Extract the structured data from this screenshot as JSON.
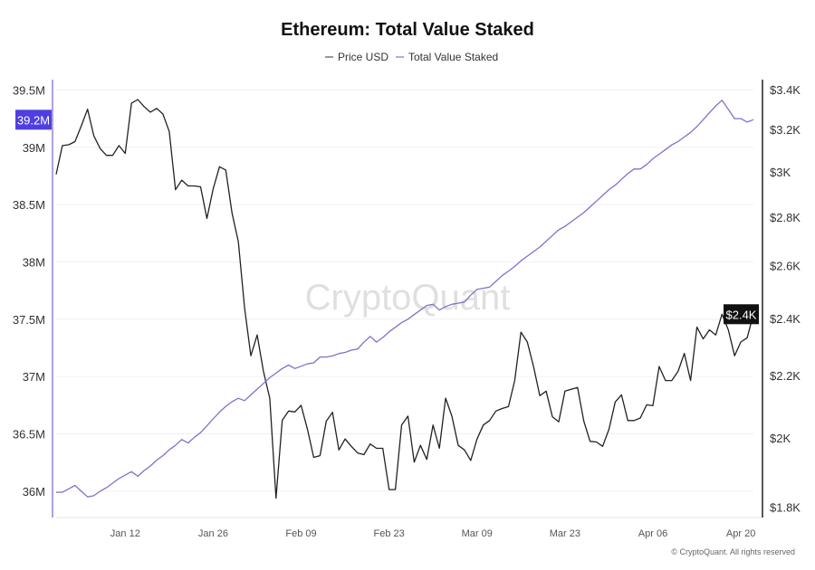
{
  "chart_data": {
    "type": "line",
    "title": "Ethereum: Total Value Staked",
    "legend_placement": "top-center",
    "grid": true,
    "watermark": "CryptoQuant",
    "footer": "© CryptoQuant. All rights reserved",
    "x": [
      "Jan 01",
      "Jan 02",
      "Jan 03",
      "Jan 04",
      "Jan 05",
      "Jan 06",
      "Jan 07",
      "Jan 08",
      "Jan 09",
      "Jan 10",
      "Jan 11",
      "Jan 12",
      "Jan 13",
      "Jan 14",
      "Jan 15",
      "Jan 16",
      "Jan 17",
      "Jan 18",
      "Jan 19",
      "Jan 20",
      "Jan 21",
      "Jan 22",
      "Jan 23",
      "Jan 24",
      "Jan 25",
      "Jan 26",
      "Jan 27",
      "Jan 28",
      "Jan 29",
      "Jan 30",
      "Jan 31",
      "Feb 01",
      "Feb 02",
      "Feb 03",
      "Feb 04",
      "Feb 05",
      "Feb 06",
      "Feb 07",
      "Feb 08",
      "Feb 09",
      "Feb 10",
      "Feb 11",
      "Feb 12",
      "Feb 13",
      "Feb 14",
      "Feb 15",
      "Feb 16",
      "Feb 17",
      "Feb 18",
      "Feb 19",
      "Feb 20",
      "Feb 21",
      "Feb 22",
      "Feb 23",
      "Feb 24",
      "Feb 25",
      "Feb 26",
      "Feb 27",
      "Feb 28",
      "Mar 01",
      "Mar 02",
      "Mar 03",
      "Mar 04",
      "Mar 05",
      "Mar 06",
      "Mar 07",
      "Mar 08",
      "Mar 09",
      "Mar 10",
      "Mar 11",
      "Mar 12",
      "Mar 13",
      "Mar 14",
      "Mar 15",
      "Mar 16",
      "Mar 17",
      "Mar 18",
      "Mar 19",
      "Mar 20",
      "Mar 21",
      "Mar 22",
      "Mar 23",
      "Mar 24",
      "Mar 25",
      "Mar 26",
      "Mar 27",
      "Mar 28",
      "Mar 29",
      "Mar 30",
      "Mar 31",
      "Apr 01",
      "Apr 02",
      "Apr 03",
      "Apr 04",
      "Apr 05",
      "Apr 06",
      "Apr 07",
      "Apr 08",
      "Apr 09",
      "Apr 10",
      "Apr 11",
      "Apr 12",
      "Apr 13",
      "Apr 14",
      "Apr 15",
      "Apr 16",
      "Apr 17",
      "Apr 18",
      "Apr 19",
      "Apr 20",
      "Apr 21",
      "Apr 22"
    ],
    "x_ticks": [
      "Jan 12",
      "Jan 26",
      "Feb 09",
      "Feb 23",
      "Mar 09",
      "Mar 23",
      "Apr 06",
      "Apr 20"
    ],
    "series": [
      {
        "name": "Price USD",
        "axis": "right",
        "color": "#222222",
        "values": [
          2988,
          3122,
          3126,
          3141,
          3216,
          3300,
          3169,
          3108,
          3076,
          3076,
          3122,
          3085,
          3330,
          3349,
          3313,
          3285,
          3304,
          3276,
          3190,
          2919,
          2962,
          2936,
          2936,
          2932,
          2794,
          2923,
          3023,
          3008,
          2818,
          2697,
          2438,
          2267,
          2340,
          2214,
          2125,
          1825,
          2055,
          2084,
          2081,
          2102,
          2027,
          1942,
          1947,
          2052,
          2080,
          1964,
          1997,
          1975,
          1955,
          1950,
          1982,
          1969,
          1969,
          1849,
          1849,
          2040,
          2068,
          1928,
          1978,
          1936,
          2040,
          1969,
          2125,
          2068,
          1978,
          1964,
          1933,
          1997,
          2040,
          2054,
          2084,
          2092,
          2098,
          2183,
          2350,
          2315,
          2230,
          2133,
          2148,
          2066,
          2050,
          2148,
          2154,
          2160,
          2052,
          1990,
          1988,
          1975,
          2027,
          2113,
          2136,
          2054,
          2054,
          2062,
          2104,
          2101,
          2230,
          2183,
          2183,
          2214,
          2275,
          2183,
          2368,
          2326,
          2358,
          2340,
          2415,
          2358,
          2267,
          2315,
          2330,
          2415
        ],
        "last_value_label": "$2.4K"
      },
      {
        "name": "Total Value Staked",
        "axis": "left",
        "color": "#7b74c9",
        "unit": "M",
        "values": [
          35.99,
          35.99,
          36.02,
          36.05,
          36.0,
          35.95,
          35.96,
          36.0,
          36.03,
          36.07,
          36.11,
          36.14,
          36.17,
          36.13,
          36.18,
          36.22,
          36.27,
          36.31,
          36.36,
          36.4,
          36.45,
          36.42,
          36.47,
          36.51,
          36.57,
          36.63,
          36.69,
          36.74,
          36.78,
          36.81,
          36.79,
          36.84,
          36.89,
          36.94,
          36.99,
          37.03,
          37.07,
          37.1,
          37.07,
          37.09,
          37.11,
          37.12,
          37.17,
          37.17,
          37.18,
          37.2,
          37.21,
          37.23,
          37.24,
          37.3,
          37.35,
          37.3,
          37.34,
          37.39,
          37.43,
          37.47,
          37.5,
          37.54,
          37.58,
          37.62,
          37.63,
          37.58,
          37.61,
          37.63,
          37.64,
          37.65,
          37.71,
          37.76,
          37.77,
          37.78,
          37.83,
          37.88,
          37.92,
          37.96,
          38.01,
          38.05,
          38.09,
          38.13,
          38.18,
          38.23,
          38.28,
          38.31,
          38.35,
          38.39,
          38.43,
          38.48,
          38.53,
          38.58,
          38.63,
          38.67,
          38.72,
          38.77,
          38.81,
          38.81,
          38.85,
          38.9,
          38.94,
          38.98,
          39.02,
          39.05,
          39.09,
          39.13,
          39.18,
          39.24,
          39.3,
          39.36,
          39.41,
          39.33,
          39.25,
          39.25,
          39.22,
          39.24
        ],
        "last_value_label": "39.2M"
      }
    ],
    "left_axis": {
      "scale": "linear",
      "ylim": [
        35.77,
        39.59
      ],
      "ticks": [
        36,
        36.5,
        37,
        37.5,
        38,
        38.5,
        39,
        39.5
      ],
      "tick_labels": [
        "36M",
        "36.5M",
        "37M",
        "37.5M",
        "38M",
        "38.5M",
        "39M",
        "39.5M"
      ],
      "color": "#a9a4e0",
      "badge_color": "#4f3fe0"
    },
    "right_axis": {
      "scale": "log",
      "ylim": [
        1772,
        3452
      ],
      "ticks": [
        1800,
        2000,
        2200,
        2400,
        2600,
        2800,
        3000,
        3200,
        3400
      ],
      "tick_labels": [
        "$1.8K",
        "$2K",
        "$2.2K",
        "$2.4K",
        "$2.6K",
        "$2.8K",
        "$3K",
        "$3.2K",
        "$3.4K"
      ],
      "color": "#222222",
      "badge_color": "#111111"
    }
  }
}
